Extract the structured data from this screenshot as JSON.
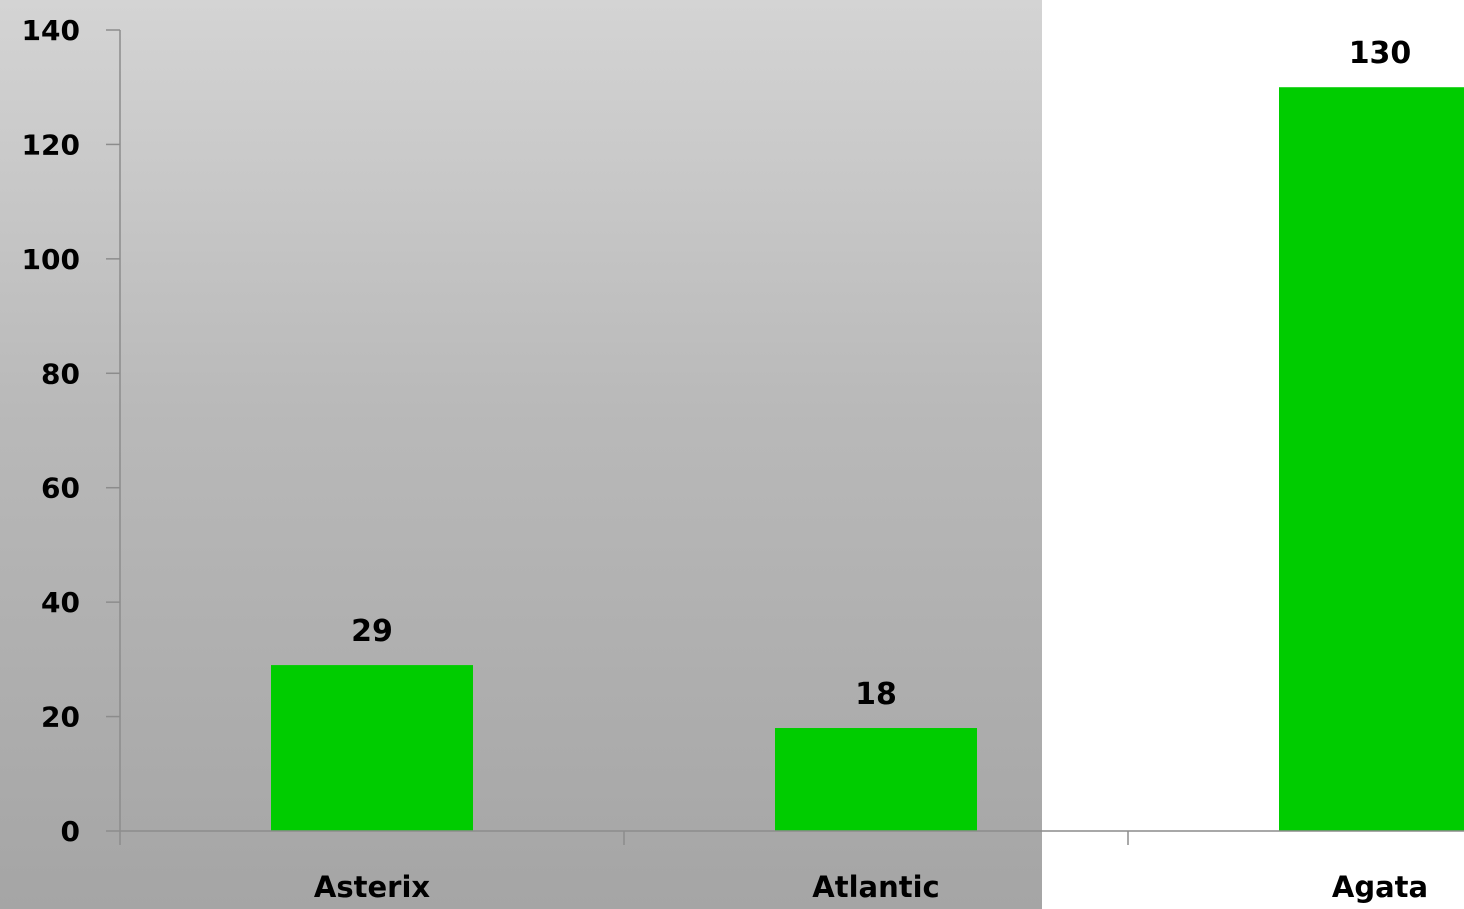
{
  "chart_data": {
    "type": "bar",
    "categories": [
      "Asterix",
      "Atlantic",
      "Agata"
    ],
    "values": [
      29,
      18,
      130
    ],
    "data_labels": [
      "29",
      "18",
      "130"
    ],
    "title": "",
    "xlabel": "",
    "ylabel": "",
    "ylim": [
      0,
      140
    ],
    "yticks": [
      0,
      20,
      40,
      60,
      80,
      100,
      120,
      140
    ],
    "grid": false,
    "legend": "none",
    "bar_color": "#00cc00",
    "axis_color": "#8c8c8c"
  }
}
